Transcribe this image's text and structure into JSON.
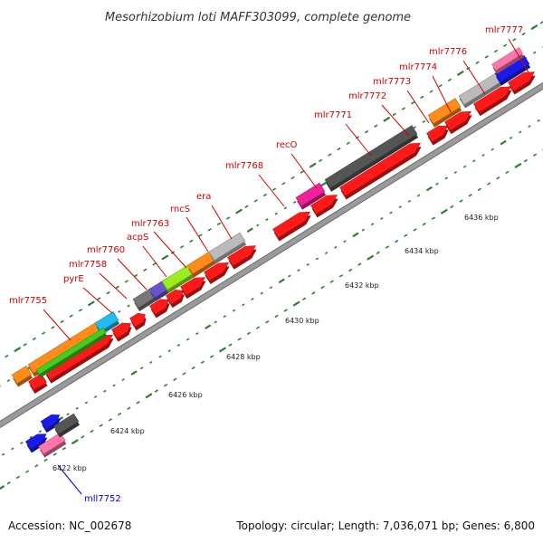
{
  "title": "Mesorhizobium loti MAFF303099, complete genome",
  "footer": {
    "accession": "Accession: NC_002678",
    "summary": "Topology: circular; Length: 7,036,071 bp; Genes: 6,800"
  },
  "colors": {
    "background": "#ffffff",
    "backbone": "#9a9a9a",
    "backbone_edge": "#6a6a6a",
    "tick": "#2e7d32",
    "cds": "#ff0000",
    "label_forward": "#cc0000",
    "label_reverse": "#0000cc"
  },
  "scale_labels": [
    "6422 kbp",
    "6424 kbp",
    "6426 kbp",
    "6428 kbp",
    "6430 kbp",
    "6432 kbp",
    "6434 kbp",
    "6436 kbp"
  ],
  "gene_labels": [
    {
      "text": "mlr7755",
      "color": "#cc0000"
    },
    {
      "text": "pyrE",
      "color": "#cc0000"
    },
    {
      "text": "mlr7758",
      "color": "#cc0000"
    },
    {
      "text": "mlr7760",
      "color": "#cc0000"
    },
    {
      "text": "acpS",
      "color": "#cc0000"
    },
    {
      "text": "mlr7763",
      "color": "#cc0000"
    },
    {
      "text": "rncS",
      "color": "#cc0000"
    },
    {
      "text": "era",
      "color": "#cc0000"
    },
    {
      "text": "mlr7768",
      "color": "#cc0000"
    },
    {
      "text": "recO",
      "color": "#cc0000"
    },
    {
      "text": "mlr7771",
      "color": "#cc0000"
    },
    {
      "text": "mlr7772",
      "color": "#cc0000"
    },
    {
      "text": "mlr7773",
      "color": "#cc0000"
    },
    {
      "text": "mlr7774",
      "color": "#cc0000"
    },
    {
      "text": "mlr7776",
      "color": "#cc0000"
    },
    {
      "text": "mlr7777",
      "color": "#cc0000"
    },
    {
      "text": "mll7752",
      "color": "#0000cc"
    }
  ],
  "feature_colors": {
    "red": "#ff1a1a",
    "orange": "#ff8c1a",
    "green": "#44cc22",
    "lime": "#99ee22",
    "cyan": "#22bbee",
    "gray": "#777777",
    "darkgray": "#555555",
    "lightgray": "#bbbbbb",
    "purple": "#6655cc",
    "magenta": "#ee2299",
    "blue": "#1a1aee",
    "pink": "#ff77aa"
  }
}
